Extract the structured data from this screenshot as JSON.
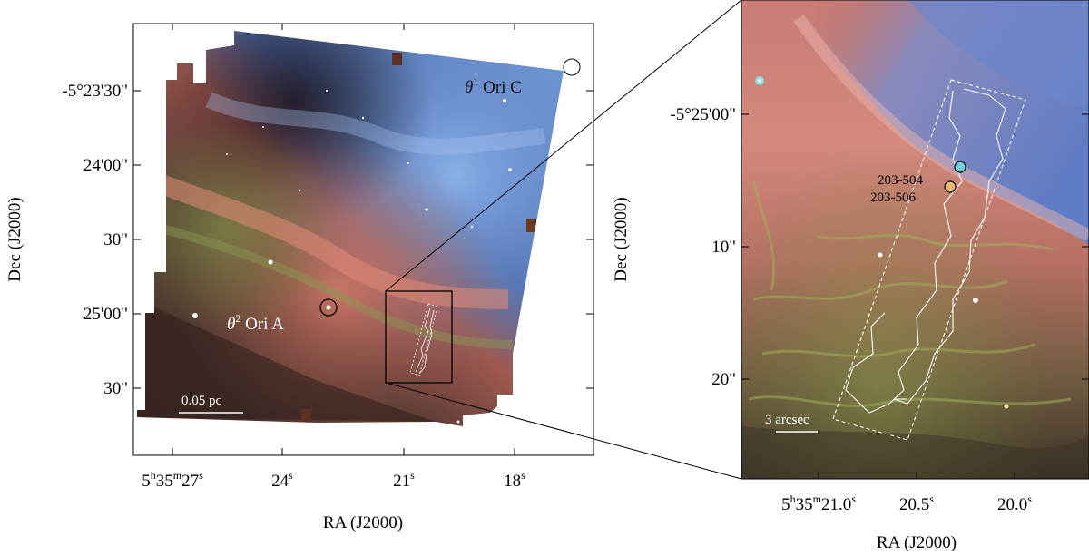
{
  "left_panel": {
    "x_axis_label": "RA (J2000)",
    "y_axis_label": "Dec (J2000)",
    "x_ticks": [
      {
        "h": "5",
        "m": "35",
        "s": "27",
        "full": "5h35m27s"
      },
      {
        "s": "24",
        "full": "24s"
      },
      {
        "s": "21",
        "full": "21s"
      },
      {
        "s": "18",
        "full": "18s"
      }
    ],
    "y_ticks": [
      "-5°23'30\"",
      "24'00\"",
      "30\"",
      "25'00\"",
      "30\""
    ],
    "annotations": {
      "star_c": {
        "greek": "θ",
        "sup": "1",
        "text": " Ori C"
      },
      "star_a": {
        "greek": "θ",
        "sup": "2",
        "text": " Ori A"
      },
      "scale_bar": "0.05 pc"
    }
  },
  "right_panel": {
    "x_axis_label": "RA (J2000)",
    "y_axis_label": "Dec (J2000)",
    "x_ticks": [
      {
        "h": "5",
        "m": "35",
        "s": "21.0",
        "full": "5h35m21.0s"
      },
      {
        "s": "20.5",
        "full": "20.5s"
      },
      {
        "s": "20.0",
        "full": "20.0s"
      }
    ],
    "y_ticks": [
      "-5°25'00\"",
      "10\"",
      "20\""
    ],
    "annotations": {
      "source_1": "203-504",
      "source_2": "203-506",
      "scale_bar": "3 arcsec"
    }
  },
  "colors": {
    "sky_blue": "#6f8fd0",
    "nebula_red": "#c46a5e",
    "filament_green": "#6f8a3a",
    "dark_region": "#2a1f25",
    "overlay": "#ffffff"
  }
}
